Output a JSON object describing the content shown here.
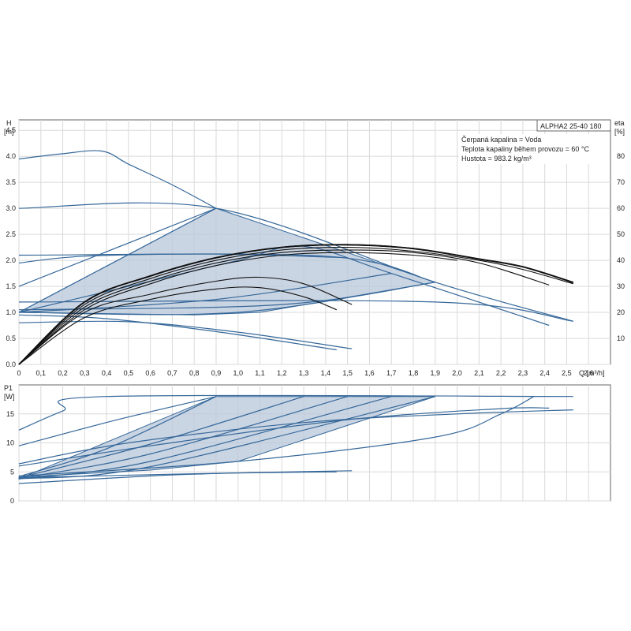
{
  "chart_data": [
    {
      "type": "line",
      "model_label": "ALPHA2 25-40 180",
      "info_lines": [
        "Čerpaná kapalina = Voda",
        "Teplota kapaliny během provozu = 60 °C",
        "Hustota = 983.2 kg/m³"
      ],
      "ylabel_lines": [
        "H",
        "[m]"
      ],
      "y2label_lines": [
        "eta",
        "[%]"
      ],
      "xlabel": "Q [m³/h]",
      "xlim": [
        0,
        2.7
      ],
      "ylim": [
        0,
        4.7
      ],
      "y2lim": [
        0,
        94
      ],
      "grid": true,
      "x_ticks": [
        "0",
        "0,1",
        "0,2",
        "0,3",
        "0,4",
        "0,5",
        "0,6",
        "0,7",
        "0,8",
        "0,9",
        "1,0",
        "1,1",
        "1,2",
        "1,3",
        "1,4",
        "1,5",
        "1,6",
        "1,7",
        "1,8",
        "1,9",
        "2,0",
        "2,1",
        "2,2",
        "2,3",
        "2,4",
        "2,5",
        "2,6"
      ],
      "y_ticks": [
        "0.0",
        "0.5",
        "1.0",
        "1.5",
        "2.0",
        "2.5",
        "3.0",
        "3.5",
        "4.0",
        "4.5"
      ],
      "y2_ticks": [
        "10",
        "20",
        "30",
        "40",
        "50",
        "60",
        "70",
        "80"
      ],
      "operating_area": [
        [
          0,
          1.0
        ],
        [
          0.9,
          3.0
        ],
        [
          1.9,
          1.58
        ],
        [
          1.1,
          1.0
        ],
        [
          0.8,
          0.95
        ],
        [
          0,
          1.0
        ]
      ],
      "head_curves": [
        {
          "points": [
            [
              0,
              3.95
            ],
            [
              0.2,
              4.05
            ],
            [
              0.38,
              4.1
            ],
            [
              0.5,
              3.85
            ],
            [
              0.7,
              3.45
            ],
            [
              0.9,
              3.0
            ]
          ]
        },
        {
          "points": [
            [
              0,
              3.0
            ],
            [
              0.9,
              3.0
            ],
            [
              1.9,
              1.58
            ],
            [
              2.53,
              0.83
            ]
          ]
        },
        {
          "points": [
            [
              0,
              1.5
            ],
            [
              0.9,
              3.0
            ]
          ]
        },
        {
          "points": [
            [
              0,
              1.0
            ],
            [
              0.9,
              3.0
            ]
          ]
        },
        {
          "points": [
            [
              0,
              2.1
            ],
            [
              1.4,
              2.08
            ],
            [
              1.9,
              1.58
            ]
          ]
        },
        {
          "points": [
            [
              0,
              1.95
            ],
            [
              0.3,
              2.08
            ],
            [
              0.9,
              2.12
            ],
            [
              1.5,
              2.05
            ]
          ]
        },
        {
          "points": [
            [
              0,
              1.2
            ],
            [
              1.9,
              1.2
            ],
            [
              2.53,
              0.83
            ]
          ]
        },
        {
          "points": [
            [
              0,
              1.0
            ],
            [
              1.0,
              1.0
            ],
            [
              1.9,
              1.58
            ]
          ]
        },
        {
          "points": [
            [
              0,
              1.05
            ],
            [
              1.2,
              1.15
            ],
            [
              1.9,
              1.58
            ]
          ]
        },
        {
          "points": [
            [
              0,
              1.0
            ],
            [
              0.9,
              1.25
            ],
            [
              1.7,
              1.75
            ]
          ]
        },
        {
          "points": [
            [
              0,
              1.0
            ],
            [
              0.5,
              1.5
            ],
            [
              1.0,
              2.0
            ],
            [
              1.3,
              2.27
            ],
            [
              1.7,
              1.75
            ],
            [
              2.42,
              0.75
            ]
          ]
        },
        {
          "points": [
            [
              0,
              0.8
            ],
            [
              0.5,
              0.82
            ],
            [
              1.0,
              0.62
            ],
            [
              1.52,
              0.3
            ]
          ]
        },
        {
          "points": [
            [
              0,
              0.95
            ],
            [
              0.4,
              0.88
            ],
            [
              0.9,
              0.63
            ],
            [
              1.45,
              0.28
            ]
          ]
        }
      ],
      "efficiency_curves": [
        {
          "points": [
            [
              0,
              0
            ],
            [
              0.3,
              24
            ],
            [
              0.6,
              34
            ],
            [
              0.9,
              41
            ],
            [
              1.2,
              45
            ],
            [
              1.5,
              46
            ],
            [
              1.8,
              44.5
            ],
            [
              2.1,
              40.5
            ],
            [
              2.3,
              37.5
            ],
            [
              2.53,
              31.5
            ]
          ]
        },
        {
          "points": [
            [
              0,
              0
            ],
            [
              0.3,
              24
            ],
            [
              0.6,
              34
            ],
            [
              0.9,
              41
            ],
            [
              1.2,
              45
            ],
            [
              1.5,
              46
            ],
            [
              1.8,
              44.5
            ],
            [
              2.1,
              40.5
            ],
            [
              2.3,
              37.5
            ],
            [
              2.53,
              31.5
            ]
          ]
        },
        {
          "points": [
            [
              0,
              0
            ],
            [
              0.3,
              23
            ],
            [
              0.6,
              33
            ],
            [
              0.9,
              40
            ],
            [
              1.2,
              44
            ],
            [
              1.5,
              45
            ],
            [
              1.8,
              43.5
            ],
            [
              2.1,
              40
            ],
            [
              2.3,
              36.5
            ],
            [
              2.53,
              31
            ]
          ]
        },
        {
          "points": [
            [
              0,
              0
            ],
            [
              0.3,
              22
            ],
            [
              0.6,
              32
            ],
            [
              0.9,
              39
            ],
            [
              1.2,
              43
            ],
            [
              1.5,
              44
            ],
            [
              1.8,
              43
            ],
            [
              2.1,
              39
            ],
            [
              2.42,
              30.5
            ]
          ]
        },
        {
          "points": [
            [
              0,
              0
            ],
            [
              0.3,
              21
            ],
            [
              0.6,
              31
            ],
            [
              0.9,
              38
            ],
            [
              1.2,
              42
            ],
            [
              1.5,
              43
            ],
            [
              1.8,
              42
            ],
            [
              2.0,
              40
            ]
          ]
        },
        {
          "points": [
            [
              0,
              0
            ],
            [
              0.3,
              20
            ],
            [
              0.6,
              27
            ],
            [
              0.9,
              32
            ],
            [
              1.1,
              33.5
            ],
            [
              1.3,
              31
            ],
            [
              1.52,
              23
            ]
          ]
        },
        {
          "points": [
            [
              0,
              0
            ],
            [
              0.3,
              18
            ],
            [
              0.6,
              25
            ],
            [
              0.9,
              29
            ],
            [
              1.1,
              29.5
            ],
            [
              1.3,
              26
            ],
            [
              1.45,
              21
            ]
          ]
        }
      ]
    },
    {
      "type": "line",
      "ylabel_lines": [
        "P1",
        "[W]"
      ],
      "xlim": [
        0,
        2.7
      ],
      "ylim": [
        0,
        20
      ],
      "y_ticks": [
        "0",
        "5",
        "10",
        "15"
      ],
      "grid": true,
      "operating_area": [
        [
          0,
          3.8
        ],
        [
          0.9,
          18
        ],
        [
          1.9,
          18
        ],
        [
          1.0,
          6.8
        ],
        [
          0.6,
          5.3
        ],
        [
          0,
          4.1
        ]
      ],
      "power_curves": [
        {
          "points": [
            [
              0,
              12.2
            ],
            [
              0.2,
              15.5
            ],
            [
              0.4,
              18
            ],
            [
              2.53,
              18
            ]
          ]
        },
        {
          "points": [
            [
              0,
              9.5
            ],
            [
              0.45,
              14
            ],
            [
              0.9,
              18
            ]
          ]
        },
        {
          "points": [
            [
              0,
              4.2
            ],
            [
              0.4,
              9
            ],
            [
              0.9,
              18
            ]
          ]
        },
        {
          "points": [
            [
              0,
              4.0
            ],
            [
              0.6,
              9.8
            ],
            [
              1.3,
              18
            ]
          ]
        },
        {
          "points": [
            [
              0,
              3.9
            ],
            [
              0.6,
              8.1
            ],
            [
              1.5,
              18
            ]
          ]
        },
        {
          "points": [
            [
              0,
              3.8
            ],
            [
              0.6,
              6.8
            ],
            [
              1.7,
              18
            ]
          ]
        },
        {
          "points": [
            [
              0,
              3.8
            ],
            [
              0.6,
              5.9
            ],
            [
              1.9,
              18
            ]
          ]
        },
        {
          "points": [
            [
              0,
              4.3
            ],
            [
              1.0,
              6.8
            ],
            [
              1.9,
              11
            ],
            [
              2.2,
              15
            ],
            [
              2.35,
              18
            ]
          ]
        },
        {
          "points": [
            [
              0,
              6.4
            ],
            [
              0.5,
              10
            ],
            [
              1.3,
              13.5
            ],
            [
              2.0,
              15
            ],
            [
              2.53,
              15.7
            ]
          ]
        },
        {
          "points": [
            [
              0,
              6.0
            ],
            [
              0.6,
              9.5
            ],
            [
              1.5,
              14
            ],
            [
              2.2,
              15.9
            ],
            [
              2.42,
              16
            ]
          ]
        },
        {
          "points": [
            [
              0,
              4.0
            ],
            [
              0.7,
              4.6
            ],
            [
              1.1,
              4.9
            ],
            [
              1.52,
              5.2
            ]
          ]
        },
        {
          "points": [
            [
              0,
              3.0
            ],
            [
              0.6,
              4.3
            ],
            [
              1.0,
              4.8
            ],
            [
              1.45,
              5.0
            ]
          ]
        }
      ]
    }
  ]
}
